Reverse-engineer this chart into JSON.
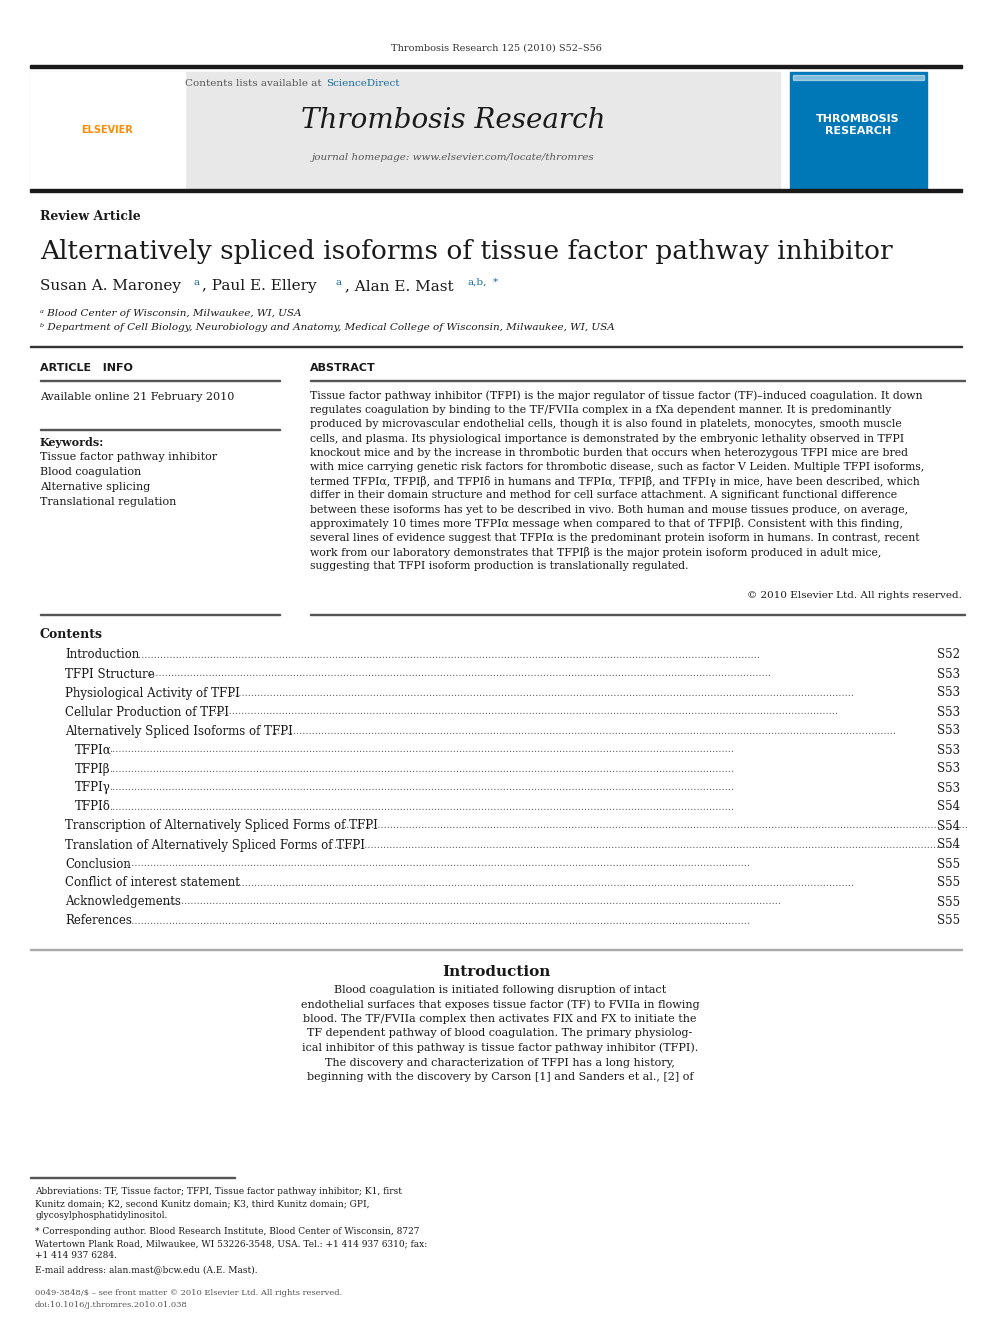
{
  "bg_color": "#ffffff",
  "header_journal_text": "Thrombosis Research 125 (2010) S52–S56",
  "header_bar_color": "#2c2c2c",
  "journal_header_bg": "#e8e8e8",
  "sciencedirect_color": "#1a6b9e",
  "journal_title": "Thrombosis Research",
  "journal_homepage": "journal homepage: www.elsevier.com/locate/thromres",
  "article_title": "Alternatively spliced isoforms of tissue factor pathway inhibitor",
  "available_online": "Available online 21 February 2010",
  "keywords": [
    "Tissue factor pathway inhibitor",
    "Blood coagulation",
    "Alternative splicing",
    "Translational regulation"
  ],
  "abstract_text": "Tissue factor pathway inhibitor (TFPI) is the major regulator of tissue factor (TF)–induced coagulation. It down\nregulates coagulation by binding to the TF/FVIIa complex in a fXa dependent manner. It is predominantly\nproduced by microvascular endothelial cells, though it is also found in platelets, monocytes, smooth muscle\ncells, and plasma. Its physiological importance is demonstrated by the embryonic lethality observed in TFPI\nknockout mice and by the increase in thrombotic burden that occurs when heterozygous TFPI mice are bred\nwith mice carrying genetic risk factors for thrombotic disease, such as factor V Leiden. Multiple TFPI isoforms,\ntermed TFPIα, TFPIβ, and TFPIδ in humans and TFPIα, TFPIβ, and TFPIγ in mice, have been described, which\ndiffer in their domain structure and method for cell surface attachment. A significant functional difference\nbetween these isoforms has yet to be described in vivo. Both human and mouse tissues produce, on average,\napproximately 10 times more TFPIα message when compared to that of TFPIβ. Consistent with this finding,\nseveral lines of evidence suggest that TFPIα is the predominant protein isoform in humans. In contrast, recent\nwork from our laboratory demonstrates that TFPIβ is the major protein isoform produced in adult mice,\nsuggesting that TFPI isoform production is translationally regulated.",
  "copyright_text": "© 2010 Elsevier Ltd. All rights reserved.",
  "contents_items": [
    [
      "Introduction",
      "S52"
    ],
    [
      "TFPI Structure",
      "S53"
    ],
    [
      "Physiological Activity of TFPI",
      "S53"
    ],
    [
      "Cellular Production of TFPI",
      "S53"
    ],
    [
      "Alternatively Spliced Isoforms of TFPI",
      "S53"
    ],
    [
      "TFPIα",
      "S53"
    ],
    [
      "TFPIβ",
      "S53"
    ],
    [
      "TFPIγ",
      "S53"
    ],
    [
      "TFPIδ",
      "S54"
    ],
    [
      "Transcription of Alternatively Spliced Forms of TFPI",
      "S54"
    ],
    [
      "Translation of Alternatively Spliced Forms of TFPI",
      "S54"
    ],
    [
      "Conclusion",
      "S55"
    ],
    [
      "Conflict of interest statement",
      "S55"
    ],
    [
      "Acknowledgements",
      "S55"
    ],
    [
      "References",
      "S55"
    ]
  ],
  "intro_text": "Blood coagulation is initiated following disruption of intact\nendothelial surfaces that exposes tissue factor (TF) to FVIIa in flowing\nblood. The TF/FVIIa complex then activates FIX and FX to initiate the\nTF dependent pathway of blood coagulation. The primary physiolog-\nical inhibitor of this pathway is tissue factor pathway inhibitor (TFPI).\nThe discovery and characterization of TFPI has a long history,\nbeginning with the discovery by Carson [1] and Sanders et al., [2] of",
  "footnote_abbrev": "Abbreviations: TF, Tissue factor; TFPI, Tissue factor pathway inhibitor; K1, first\nKunitz domain; K2, second Kunitz domain; K3, third Kunitz domain; GPI,\nglycosylphosphatidylinositol.",
  "footnote_corresponding": "* Corresponding author. Blood Research Institute, Blood Center of Wisconsin, 8727\nWatertown Plank Road, Milwaukee, WI 53226-3548, USA. Tel.: +1 414 937 6310; fax:\n+1 414 937 6284.",
  "footnote_email": "E-mail address: alan.mast@bcw.edu (A.E. Mast).",
  "footer_text": "0049-3848/$ – see front matter © 2010 Elsevier Ltd. All rights reserved.\ndoi:10.1016/j.thromres.2010.01.038",
  "elsevier_color": "#ff8c00",
  "thrombosis_sidebar_bg": "#0077b6"
}
